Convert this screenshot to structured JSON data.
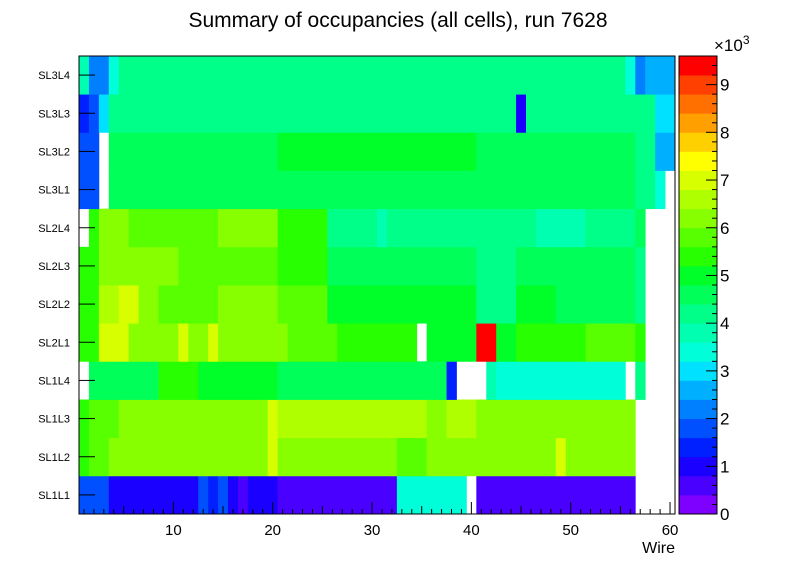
{
  "chart_data": {
    "type": "heatmap",
    "title": "Summary of occupancies (all cells),      run 7628",
    "xlabel": "Wire",
    "ylabel": "",
    "x_range": [
      0.5,
      60.5
    ],
    "x_ticks": [
      10,
      20,
      30,
      40,
      50,
      60
    ],
    "z_range": [
      0,
      9600
    ],
    "z_multiplier_label": "×10",
    "z_multiplier_exponent": "3",
    "z_tick_values": [
      0,
      1,
      2,
      3,
      4,
      5,
      6,
      7,
      8,
      9
    ],
    "z_ticks": [
      "0",
      "1",
      "2",
      "3",
      "4",
      "5",
      "6",
      "7",
      "8",
      "9"
    ],
    "palette_colors": [
      "#7e00ff",
      "#4a00ff",
      "#1a00ff",
      "#0020ff",
      "#0050ff",
      "#0080ff",
      "#00b0ff",
      "#00e0ff",
      "#00ffd8",
      "#00ffb0",
      "#00ff88",
      "#00ff58",
      "#00ff28",
      "#28ff00",
      "#58ff00",
      "#88ff00",
      "#b0ff00",
      "#d8ff00",
      "#ffff00",
      "#ffd000",
      "#ffa000",
      "#ff7000",
      "#ff4000",
      "#ff0000"
    ],
    "rows": [
      "SL1L1",
      "SL1L2",
      "SL1L3",
      "SL1L4",
      "SL2L1",
      "SL2L2",
      "SL2L3",
      "SL2L4",
      "SL3L1",
      "SL3L2",
      "SL3L3",
      "SL3L4"
    ],
    "cells": [
      {
        "row": "SL1L1",
        "runs": [
          [
            1,
            3,
            1900
          ],
          [
            4,
            12,
            1050
          ],
          [
            13,
            13,
            1800
          ],
          [
            14,
            14,
            1300
          ],
          [
            15,
            15,
            1850
          ],
          [
            16,
            16,
            1100
          ],
          [
            17,
            17,
            700
          ],
          [
            18,
            20,
            1000
          ],
          [
            21,
            32,
            550
          ],
          [
            33,
            39,
            3350
          ],
          [
            40,
            40,
            null
          ],
          [
            41,
            56,
            550
          ]
        ]
      },
      {
        "row": "SL1L2",
        "runs": [
          [
            1,
            1,
            5200
          ],
          [
            2,
            3,
            5800
          ],
          [
            4,
            19,
            6300
          ],
          [
            20,
            20,
            7000
          ],
          [
            21,
            25,
            6300
          ],
          [
            26,
            32,
            6000
          ],
          [
            33,
            35,
            5800
          ],
          [
            36,
            40,
            6300
          ],
          [
            41,
            48,
            6100
          ],
          [
            49,
            49,
            7000
          ],
          [
            50,
            56,
            6200
          ]
        ]
      },
      {
        "row": "SL1L3",
        "runs": [
          [
            1,
            1,
            5300
          ],
          [
            2,
            4,
            5800
          ],
          [
            5,
            19,
            6300
          ],
          [
            20,
            20,
            6900
          ],
          [
            21,
            35,
            6400
          ],
          [
            36,
            37,
            6000
          ],
          [
            38,
            40,
            6500
          ],
          [
            41,
            45,
            6200
          ],
          [
            46,
            56,
            6000
          ]
        ]
      },
      {
        "row": "SL1L4",
        "runs": [
          [
            1,
            1,
            null
          ],
          [
            2,
            8,
            4600
          ],
          [
            9,
            12,
            5200
          ],
          [
            13,
            15,
            4800
          ],
          [
            16,
            20,
            4900
          ],
          [
            21,
            35,
            4500
          ],
          [
            36,
            37,
            4600
          ],
          [
            38,
            38,
            1200
          ],
          [
            39,
            41,
            null
          ],
          [
            42,
            42,
            3800
          ],
          [
            43,
            48,
            3500
          ],
          [
            49,
            55,
            3300
          ],
          [
            56,
            56,
            null
          ],
          [
            57,
            57,
            4100
          ]
        ]
      },
      {
        "row": "SL2L1",
        "runs": [
          [
            1,
            2,
            5500
          ],
          [
            3,
            5,
            6800
          ],
          [
            6,
            10,
            6200
          ],
          [
            11,
            11,
            6800
          ],
          [
            12,
            13,
            6000
          ],
          [
            14,
            14,
            6800
          ],
          [
            15,
            21,
            6200
          ],
          [
            22,
            26,
            5600
          ],
          [
            27,
            34,
            5200
          ],
          [
            35,
            35,
            null
          ],
          [
            36,
            38,
            5000
          ],
          [
            39,
            40,
            4800
          ],
          [
            41,
            42,
            9600
          ],
          [
            43,
            44,
            4800
          ],
          [
            45,
            51,
            5400
          ],
          [
            52,
            56,
            5800
          ],
          [
            57,
            57,
            5300
          ]
        ]
      },
      {
        "row": "SL2L2",
        "runs": [
          [
            1,
            2,
            5300
          ],
          [
            3,
            4,
            6400
          ],
          [
            5,
            6,
            6800
          ],
          [
            7,
            8,
            6200
          ],
          [
            9,
            14,
            5900
          ],
          [
            15,
            20,
            6200
          ],
          [
            21,
            25,
            5600
          ],
          [
            26,
            35,
            5000
          ],
          [
            36,
            40,
            4900
          ],
          [
            41,
            44,
            4300
          ],
          [
            45,
            48,
            4800
          ],
          [
            49,
            56,
            4600
          ],
          [
            57,
            57,
            4300
          ]
        ]
      },
      {
        "row": "SL2L3",
        "runs": [
          [
            1,
            2,
            5300
          ],
          [
            3,
            6,
            6000
          ],
          [
            7,
            10,
            6200
          ],
          [
            11,
            20,
            5800
          ],
          [
            21,
            25,
            5500
          ],
          [
            26,
            40,
            4700
          ],
          [
            41,
            44,
            4300
          ],
          [
            45,
            56,
            4500
          ],
          [
            57,
            57,
            4200
          ]
        ]
      },
      {
        "row": "SL2L4",
        "runs": [
          [
            1,
            1,
            null
          ],
          [
            2,
            2,
            5200
          ],
          [
            3,
            5,
            6300
          ],
          [
            6,
            14,
            5800
          ],
          [
            15,
            20,
            6200
          ],
          [
            21,
            25,
            5400
          ],
          [
            26,
            30,
            4300
          ],
          [
            31,
            31,
            3700
          ],
          [
            32,
            40,
            4300
          ],
          [
            41,
            46,
            4100
          ],
          [
            47,
            51,
            3800
          ],
          [
            52,
            56,
            4000
          ],
          [
            57,
            57,
            4600
          ]
        ]
      },
      {
        "row": "SL3L1",
        "runs": [
          [
            1,
            2,
            1900
          ],
          [
            3,
            3,
            null
          ],
          [
            4,
            20,
            4700
          ],
          [
            21,
            40,
            4500
          ],
          [
            41,
            56,
            4400
          ],
          [
            57,
            58,
            4200
          ],
          [
            59,
            59,
            3400
          ],
          [
            60,
            60,
            null
          ]
        ]
      },
      {
        "row": "SL3L2",
        "runs": [
          [
            1,
            1,
            1600
          ],
          [
            2,
            2,
            1800
          ],
          [
            3,
            3,
            null
          ],
          [
            4,
            20,
            4400
          ],
          [
            21,
            40,
            4900
          ],
          [
            41,
            56,
            4500
          ],
          [
            57,
            58,
            4300
          ],
          [
            59,
            60,
            2700
          ]
        ]
      },
      {
        "row": "SL3L3",
        "runs": [
          [
            1,
            1,
            1400
          ],
          [
            2,
            2,
            1800
          ],
          [
            3,
            3,
            3100
          ],
          [
            4,
            14,
            4200
          ],
          [
            15,
            20,
            4000
          ],
          [
            21,
            44,
            4300
          ],
          [
            45,
            45,
            800
          ],
          [
            46,
            56,
            4200
          ],
          [
            57,
            58,
            4100
          ],
          [
            59,
            60,
            2800
          ]
        ]
      },
      {
        "row": "SL3L4",
        "runs": [
          [
            1,
            1,
            3600
          ],
          [
            2,
            3,
            2000
          ],
          [
            4,
            4,
            3500
          ],
          [
            5,
            12,
            4100
          ],
          [
            13,
            55,
            4300
          ],
          [
            56,
            56,
            3300
          ],
          [
            57,
            57,
            2300
          ],
          [
            58,
            60,
            2600
          ]
        ]
      }
    ]
  }
}
